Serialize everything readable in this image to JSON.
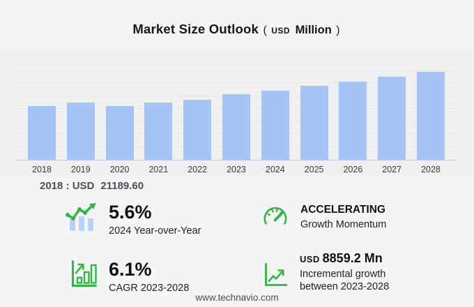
{
  "title": {
    "main": "Market Size Outlook",
    "open_paren": "(",
    "currency": "USD",
    "unit": "Million",
    "close_paren": ")"
  },
  "chart_data": {
    "type": "bar",
    "title": "Market Size Outlook (USD Million)",
    "xlabel": "",
    "ylabel": "",
    "categories": [
      "2018",
      "2019",
      "2020",
      "2021",
      "2022",
      "2023",
      "2024",
      "2025",
      "2026",
      "2027",
      "2028"
    ],
    "values": [
      21189.6,
      22400,
      21100,
      22550,
      23650,
      25702,
      27141,
      28929,
      30694,
      32566,
      34561
    ],
    "ylim": [
      0,
      35000
    ],
    "gridline_step": 5000,
    "grid": "horizontal gridlines only, no y-axis tick labels",
    "legend": "none",
    "bar_color": "#a6c4f8",
    "annotation": "2018 : USD  21189.60"
  },
  "annotation": {
    "label": "2018 : USD",
    "value": "21189.60"
  },
  "stats": [
    {
      "icon": "bar-chart-trend-icon",
      "value": "5.6%",
      "label": "2024 Year-over-Year"
    },
    {
      "icon": "gauge-icon",
      "value": "ACCELERATING",
      "label": "Growth Momentum"
    },
    {
      "icon": "chart-growth-icon",
      "value": "6.1%",
      "label": "CAGR 2023-2028"
    },
    {
      "icon": "incremental-growth-icon",
      "value_currency": "USD",
      "value": "8859.2 Mn",
      "label_line1": "Incremental growth",
      "label_line2": "between 2023-2028"
    }
  ],
  "footer": {
    "url": "www.technavio.com"
  },
  "colors": {
    "accent_green": "#31b544",
    "bar_blue": "#a6c4f8",
    "icon_bar_blue": "#b9d2f8",
    "page_bg": "#f5f5f7",
    "plot_bg": "#f0f0f3",
    "gridline": "#e2e2e6",
    "axis": "#c7c7cb",
    "text_dark": "#111111",
    "text_gray": "#4e4e52"
  }
}
